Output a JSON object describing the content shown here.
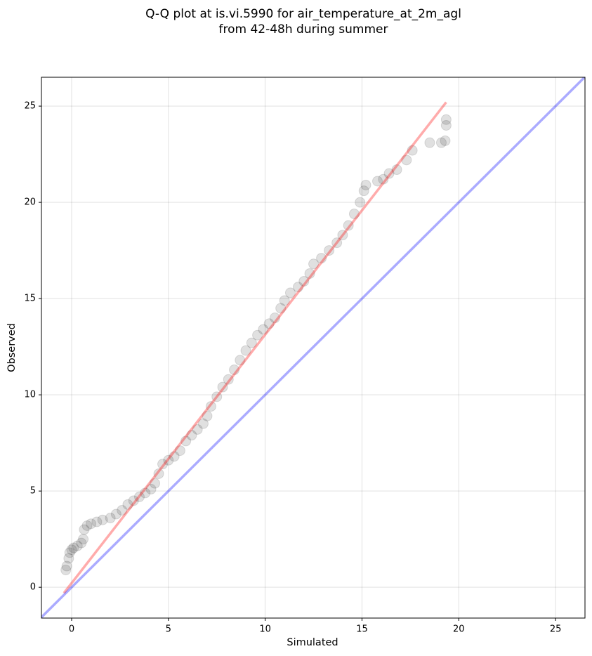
{
  "chart_data": {
    "type": "scatter",
    "title": [
      "Q-Q plot at is.vi.5990 for air_temperature_at_2m_agl",
      "from 42-48h during summer"
    ],
    "xlabel": "Simulated",
    "ylabel": "Observed",
    "xlim": [
      -1.56,
      26.52
    ],
    "ylim": [
      -1.6,
      26.5
    ],
    "xticks": [
      0,
      5,
      10,
      15,
      20,
      25
    ],
    "yticks": [
      0,
      5,
      10,
      15,
      20,
      25
    ],
    "grid": true,
    "point_color": "#000000",
    "point_opacity": 0.12,
    "x": [
      -0.3,
      -0.25,
      -0.15,
      -0.1,
      0,
      0.1,
      0.3,
      0.5,
      0.6,
      0.65,
      0.8,
      1.0,
      1.3,
      1.6,
      2.0,
      2.3,
      2.6,
      2.9,
      3.2,
      3.5,
      3.8,
      4.1,
      4.3,
      4.5,
      4.7,
      5.0,
      5.3,
      5.6,
      5.9,
      6.2,
      6.5,
      6.8,
      7.0,
      7.2,
      7.5,
      7.8,
      8.1,
      8.4,
      8.7,
      9.0,
      9.3,
      9.6,
      9.9,
      10.2,
      10.5,
      10.8,
      11.0,
      11.3,
      11.7,
      12.0,
      12.3,
      12.5,
      12.9,
      13.3,
      13.7,
      14.0,
      14.3,
      14.6,
      14.9,
      15.1,
      15.2,
      15.8,
      16.1,
      16.4,
      16.8,
      17.3,
      17.6,
      18.5,
      19.1,
      19.3,
      19.35,
      19.35
    ],
    "values": [
      0.9,
      1.1,
      1.5,
      1.8,
      1.95,
      2.05,
      2.15,
      2.3,
      2.5,
      3.0,
      3.2,
      3.3,
      3.4,
      3.5,
      3.6,
      3.8,
      4.0,
      4.3,
      4.5,
      4.7,
      4.9,
      5.1,
      5.4,
      5.9,
      6.4,
      6.6,
      6.8,
      7.1,
      7.6,
      7.9,
      8.2,
      8.5,
      8.9,
      9.4,
      9.9,
      10.4,
      10.8,
      11.3,
      11.8,
      12.3,
      12.7,
      13.1,
      13.4,
      13.7,
      14.0,
      14.5,
      14.9,
      15.3,
      15.6,
      15.9,
      16.3,
      16.8,
      17.1,
      17.5,
      17.9,
      18.3,
      18.8,
      19.4,
      20.0,
      20.6,
      20.9,
      21.1,
      21.2,
      21.5,
      21.7,
      22.2,
      22.7,
      23.1,
      23.1,
      23.2,
      24.0,
      24.3
    ],
    "lines": [
      {
        "color": "#ff0000",
        "opacity": 0.33,
        "x": [
          -0.4,
          19.35
        ],
        "values": [
          -0.3,
          25.2
        ]
      },
      {
        "color": "#0000ff",
        "opacity": 0.33,
        "x": [
          -1.56,
          26.52
        ],
        "values": [
          -1.56,
          26.52
        ]
      }
    ]
  }
}
